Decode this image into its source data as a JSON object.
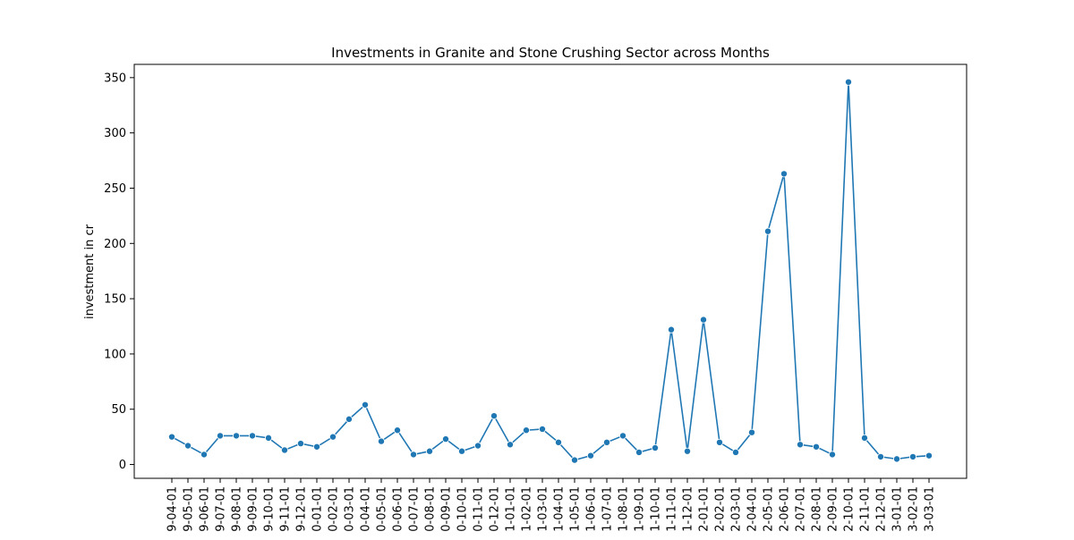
{
  "chart_data": {
    "type": "line",
    "title": "Investments in Granite and Stone Crushing Sector across Months",
    "xlabel": "",
    "ylabel": "investment in cr",
    "ylim": [
      -12.5,
      362
    ],
    "yticks": [
      0,
      50,
      100,
      150,
      200,
      250,
      300,
      350
    ],
    "grid": false,
    "markers": true,
    "line_color": "#1f77b4",
    "categories": [
      "9-04-01",
      "9-05-01",
      "9-06-01",
      "9-07-01",
      "9-08-01",
      "9-09-01",
      "9-10-01",
      "9-11-01",
      "9-12-01",
      "0-01-01",
      "0-02-01",
      "0-03-01",
      "0-04-01",
      "0-05-01",
      "0-06-01",
      "0-07-01",
      "0-08-01",
      "0-09-01",
      "0-10-01",
      "0-11-01",
      "0-12-01",
      "1-01-01",
      "1-02-01",
      "1-03-01",
      "1-04-01",
      "1-05-01",
      "1-06-01",
      "1-07-01",
      "1-08-01",
      "1-09-01",
      "1-10-01",
      "1-11-01",
      "1-12-01",
      "2-01-01",
      "2-02-01",
      "2-03-01",
      "2-04-01",
      "2-05-01",
      "2-06-01",
      "2-07-01",
      "2-08-01",
      "2-09-01",
      "2-10-01",
      "2-11-01",
      "2-12-01",
      "3-01-01",
      "3-02-01",
      "3-03-01"
    ],
    "values": [
      25,
      17,
      9,
      26,
      26,
      26,
      24,
      13,
      19,
      16,
      25,
      41,
      54,
      21,
      31,
      9,
      12,
      23,
      12,
      17,
      44,
      18,
      31,
      32,
      20,
      4,
      8,
      20,
      26,
      11,
      15,
      122,
      12,
      131,
      20,
      11,
      29,
      211,
      263,
      18,
      16,
      9,
      346,
      24,
      7,
      5,
      7,
      8
    ]
  }
}
